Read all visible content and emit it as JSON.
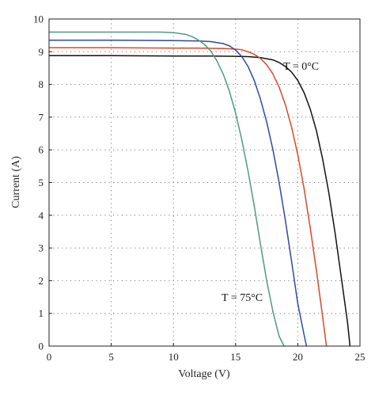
{
  "chart_data": {
    "type": "line",
    "title": "",
    "xlabel": "Voltage (V)",
    "ylabel": "Current (A)",
    "xlim": [
      0,
      25
    ],
    "ylim": [
      0,
      10
    ],
    "xticks": [
      0,
      5,
      10,
      15,
      20,
      25
    ],
    "yticks": [
      0,
      1,
      2,
      3,
      4,
      5,
      6,
      7,
      8,
      9,
      10
    ],
    "grid": true,
    "annotations": [
      {
        "text": "T = 0°C",
        "x": 19.4,
        "y": 8.6
      },
      {
        "text": "T = 75°C",
        "x": 14.8,
        "y": 1.4
      }
    ],
    "series": [
      {
        "color": "#111111",
        "x": [
          0,
          5,
          10,
          13,
          15,
          16,
          17,
          18,
          18.5,
          19,
          19.5,
          20,
          20.5,
          21,
          21.5,
          22,
          22.5,
          23,
          23.5,
          24,
          24.2
        ],
        "y": [
          8.88,
          8.88,
          8.87,
          8.87,
          8.86,
          8.85,
          8.82,
          8.75,
          8.67,
          8.55,
          8.38,
          8.12,
          7.75,
          7.25,
          6.58,
          5.72,
          4.68,
          3.45,
          2.1,
          0.72,
          0
        ]
      },
      {
        "color": "#d9482b",
        "x": [
          0,
          5,
          10,
          12,
          14,
          15,
          15.5,
          16,
          16.5,
          17,
          17.5,
          18,
          18.5,
          19,
          19.5,
          20,
          20.5,
          21,
          21.5,
          22,
          22.3
        ],
        "y": [
          9.12,
          9.12,
          9.11,
          9.11,
          9.1,
          9.08,
          9.06,
          9.0,
          8.92,
          8.8,
          8.6,
          8.32,
          7.92,
          7.38,
          6.7,
          5.85,
          4.82,
          3.62,
          2.3,
          0.9,
          0
        ]
      },
      {
        "color": "#2e4a9e",
        "x": [
          0,
          5,
          10,
          12,
          13,
          14,
          14.5,
          15,
          15.5,
          16,
          16.5,
          17,
          17.5,
          18,
          18.5,
          19,
          19.5,
          20,
          20.5,
          20.7
        ],
        "y": [
          9.35,
          9.35,
          9.34,
          9.33,
          9.31,
          9.25,
          9.18,
          9.05,
          8.85,
          8.55,
          8.12,
          7.55,
          6.85,
          6.0,
          5.0,
          3.85,
          2.6,
          1.3,
          0.35,
          0
        ]
      },
      {
        "color": "#4e9a82",
        "x": [
          0,
          5,
          8,
          9,
          10,
          11,
          11.5,
          12,
          12.5,
          13,
          13.5,
          14,
          14.5,
          15,
          15.5,
          16,
          16.5,
          17,
          17.5,
          18,
          18.5,
          18.9
        ],
        "y": [
          9.6,
          9.6,
          9.6,
          9.6,
          9.58,
          9.53,
          9.46,
          9.36,
          9.22,
          9.02,
          8.72,
          8.32,
          7.8,
          7.12,
          6.3,
          5.35,
          4.28,
          3.12,
          2.0,
          1.05,
          0.3,
          0
        ]
      }
    ]
  }
}
